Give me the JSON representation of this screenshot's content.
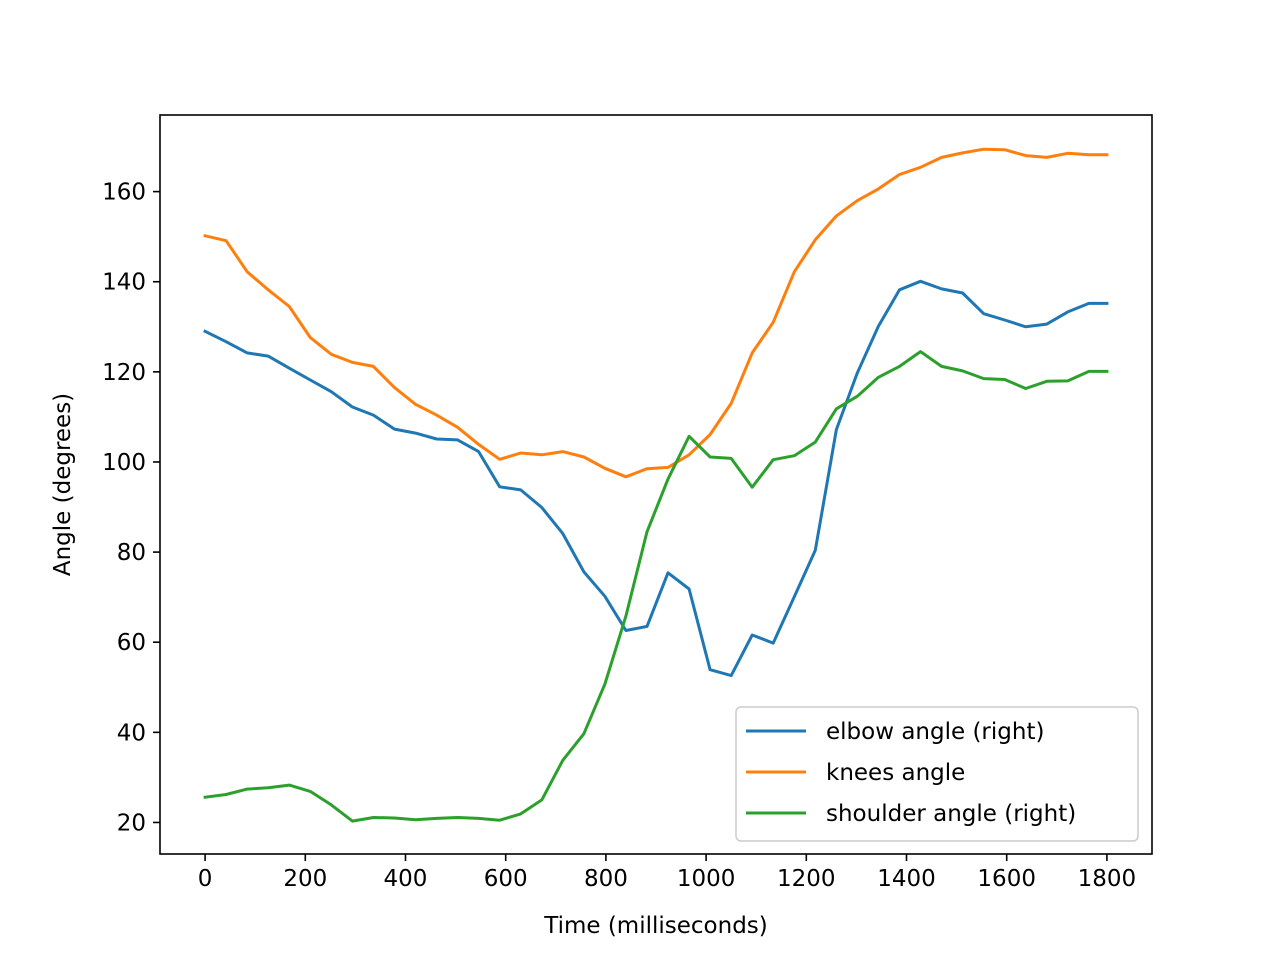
{
  "chart_data": {
    "type": "line",
    "title": "",
    "xlabel": "Time (milliseconds)",
    "ylabel": "Angle (degrees)",
    "xlim": [
      -90,
      1890
    ],
    "ylim": [
      13,
      177
    ],
    "xticks": [
      0,
      200,
      400,
      600,
      800,
      1000,
      1200,
      1400,
      1600,
      1800
    ],
    "yticks": [
      20,
      40,
      60,
      80,
      100,
      120,
      140,
      160
    ],
    "grid": false,
    "legend_position": "lower-right",
    "x": [
      0,
      42,
      84,
      126,
      168,
      210,
      252,
      294,
      336,
      378,
      420,
      462,
      504,
      546,
      588,
      630,
      672,
      714,
      756,
      798,
      840,
      882,
      924,
      966,
      1008,
      1050,
      1092,
      1134,
      1176,
      1218,
      1260,
      1302,
      1344,
      1386,
      1428,
      1470,
      1512,
      1554,
      1596,
      1638,
      1680,
      1722,
      1764,
      1800
    ],
    "series": [
      {
        "name": "elbow angle (right)",
        "color": "#1f77b4",
        "values": [
          129,
          126.7,
          124.2,
          123.5,
          120.8,
          118.2,
          115.6,
          112.2,
          110.4,
          107.3,
          106.4,
          105.1,
          104.9,
          102.3,
          94.5,
          93.8,
          89.9,
          84.1,
          75.6,
          70.2,
          62.6,
          63.5,
          75.4,
          71.8,
          53.9,
          52.6,
          61.6,
          59.8,
          70.1,
          80.4,
          107.2,
          119.8,
          130.1,
          138.2,
          140.1,
          138.4,
          137.5,
          132.9,
          131.5,
          130.0,
          130.6,
          133.3,
          135.2,
          135.2
        ]
      },
      {
        "name": "knees angle",
        "color": "#ff7f0e",
        "values": [
          150.2,
          149.1,
          142.2,
          138.2,
          134.5,
          127.6,
          123.9,
          122.1,
          121.2,
          116.5,
          112.8,
          110.4,
          107.7,
          103.9,
          100.6,
          102.0,
          101.6,
          102.3,
          101.1,
          98.6,
          96.7,
          98.5,
          98.8,
          101.6,
          106.1,
          113.0,
          124.2,
          131.0,
          142.2,
          149.3,
          154.6,
          158.0,
          160.6,
          163.8,
          165.4,
          167.6,
          168.6,
          169.4,
          169.3,
          168.0,
          167.6,
          168.5,
          168.2,
          168.2
        ]
      },
      {
        "name": "shoulder angle (right)",
        "color": "#2ca02c",
        "values": [
          25.6,
          26.2,
          27.4,
          27.7,
          28.3,
          26.9,
          23.9,
          20.3,
          21.1,
          21.0,
          20.6,
          20.9,
          21.1,
          20.9,
          20.5,
          21.9,
          25.0,
          33.8,
          39.7,
          50.7,
          65.8,
          84.5,
          96.2,
          105.7,
          101.1,
          100.8,
          94.4,
          100.5,
          101.4,
          104.4,
          111.8,
          114.6,
          118.8,
          121.2,
          124.5,
          121.2,
          120.2,
          118.5,
          118.3,
          116.3,
          117.9,
          118.0,
          120.1,
          120.1
        ]
      }
    ]
  }
}
